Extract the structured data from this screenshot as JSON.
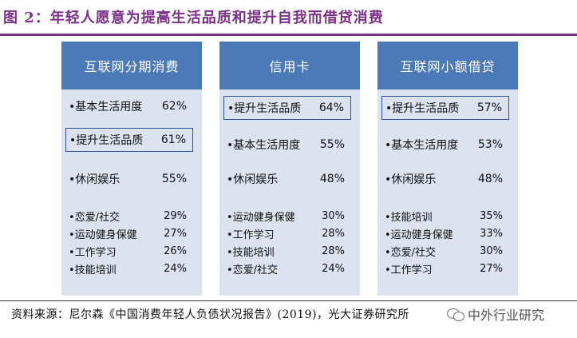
{
  "title": "图 2：年轻人愿意为提高生活品质和提升自我而借贷消费",
  "columns": [
    {
      "header": "互联网分期消费",
      "items": [
        {
          "label": "•基本生活用度",
          "value": "62%"
        },
        {
          "label": "•提升生活品质",
          "value": "61%"
        },
        {
          "label": "•休闲娱乐",
          "value": "55%"
        },
        {
          "label": "•恋爱/社交",
          "value": "29%"
        },
        {
          "label": "•运动健身保健",
          "value": "27%"
        },
        {
          "label": "•工作学习",
          "value": "26%"
        },
        {
          "label": "•技能培训",
          "value": "24%"
        }
      ]
    },
    {
      "header": "信用卡",
      "items": [
        {
          "label": "•提升生活品质",
          "value": "64%"
        },
        {
          "label": "•基本生活用度",
          "value": "55%"
        },
        {
          "label": "•休闲娱乐",
          "value": "48%"
        },
        {
          "label": "•运动健身保健",
          "value": "30%"
        },
        {
          "label": "•工作学习",
          "value": "28%"
        },
        {
          "label": "•技能培训",
          "value": "28%"
        },
        {
          "label": "•恋爱/社交",
          "value": "24%"
        }
      ]
    },
    {
      "header": "互联网小额借贷",
      "items": [
        {
          "label": "•提升生活品质",
          "value": "57%"
        },
        {
          "label": "•基本生活用度",
          "value": "53%"
        },
        {
          "label": "•休闲娱乐",
          "value": "48%"
        },
        {
          "label": "•技能培训",
          "value": "35%"
        },
        {
          "label": "•运动健身保健",
          "value": "33%"
        },
        {
          "label": "•恋爱/社交",
          "value": "30%"
        },
        {
          "label": "•工作学习",
          "value": "27%"
        }
      ]
    }
  ],
  "source": "资料来源：尼尔森《中国消费年轻人负债状况报告》(2019)，光大证券研究所",
  "watermark": "中外行业研究",
  "colors": {
    "title": "#7b2f88",
    "header_bg": "#4c79b8",
    "panel_bg": "#dbe3ee",
    "highlight_border": "#2f4f9a"
  }
}
